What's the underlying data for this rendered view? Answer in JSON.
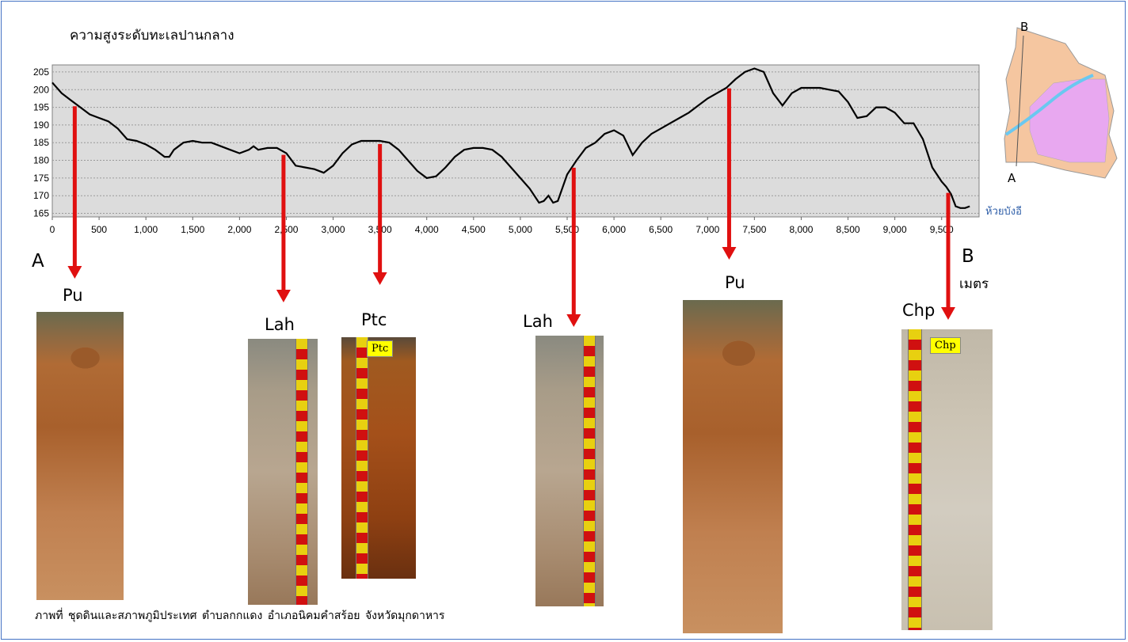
{
  "chart_data": {
    "type": "line",
    "ylabel": "ความสูงระดับทะเลปานกลาง",
    "xlabel": "เมตร",
    "xlim": [
      0,
      9900
    ],
    "ylim": [
      164,
      207
    ],
    "x_ticks": [
      0,
      500,
      1000,
      1500,
      2000,
      2500,
      3000,
      3500,
      4000,
      4500,
      5000,
      5500,
      6000,
      6500,
      7000,
      7500,
      8000,
      8500,
      9000,
      9500
    ],
    "x_tick_labels": [
      "0",
      "500",
      "1,000",
      "1,500",
      "2,000",
      "2,500",
      "3,000",
      "3,500",
      "4,000",
      "4,500",
      "5,000",
      "5,500",
      "6,000",
      "6,500",
      "7,000",
      "7,500",
      "8,000",
      "8,500",
      "9,000",
      "9,500"
    ],
    "y_ticks": [
      165,
      170,
      175,
      180,
      185,
      190,
      195,
      200,
      205
    ],
    "y_tick_labels": [
      "165",
      "170",
      "175",
      "180",
      "185",
      "190",
      "195",
      "200",
      "205"
    ],
    "grid": true,
    "line_color": "#000000",
    "plot_background": "#dcdcdc",
    "series": [
      {
        "x": [
          0,
          100,
          200,
          300,
          400,
          500,
          600,
          700,
          800,
          900,
          1000,
          1100,
          1200,
          1250,
          1300,
          1400,
          1500,
          1600,
          1700,
          1800,
          1900,
          2000,
          2100,
          2150,
          2200,
          2300,
          2400,
          2500,
          2600,
          2700,
          2800,
          2900,
          3000,
          3100,
          3200,
          3300,
          3400,
          3500,
          3600,
          3700,
          3800,
          3900,
          4000,
          4100,
          4200,
          4300,
          4400,
          4500,
          4600,
          4700,
          4800,
          4900,
          5000,
          5100,
          5200,
          5250,
          5300,
          5350,
          5400,
          5500,
          5600,
          5700,
          5800,
          5900,
          6000,
          6100,
          6200,
          6300,
          6400,
          6500,
          6600,
          6700,
          6800,
          6900,
          7000,
          7100,
          7200,
          7300,
          7400,
          7500,
          7600,
          7700,
          7800,
          7900,
          8000,
          8100,
          8200,
          8300,
          8400,
          8500,
          8600,
          8700,
          8800,
          8900,
          9000,
          9100,
          9200,
          9300,
          9400,
          9500,
          9550,
          9600,
          9650,
          9700,
          9750,
          9800
        ],
        "y": [
          202,
          199,
          197,
          195,
          193,
          192,
          191,
          189,
          186,
          185.5,
          184.5,
          183,
          181,
          181,
          183,
          185,
          185.5,
          185,
          185,
          184,
          183,
          182,
          183,
          184,
          183,
          183.5,
          183.5,
          182,
          178.5,
          178,
          177.5,
          176.5,
          178.5,
          182,
          184.5,
          185.5,
          185.5,
          185.5,
          185,
          183,
          180,
          177,
          175,
          175.5,
          178,
          181,
          183,
          183.5,
          183.5,
          183,
          181,
          178,
          175,
          172,
          168,
          168.5,
          170,
          168,
          168.5,
          176,
          180,
          183.5,
          185,
          187.5,
          188.5,
          187,
          181.5,
          185,
          187.5,
          189,
          190.5,
          192,
          193.5,
          195.5,
          197.5,
          199,
          200.5,
          203,
          205,
          206,
          205,
          199,
          195.5,
          199,
          200.5,
          200.5,
          200.5,
          200,
          199.5,
          196.5,
          192,
          192.5,
          195,
          195,
          193.5,
          190.5,
          190.5,
          186,
          178,
          174,
          172.5,
          170.5,
          167,
          166.5,
          166.5,
          167
        ]
      }
    ],
    "pointers": [
      {
        "label": "Pu",
        "x": 240
      },
      {
        "label": "Lah",
        "x": 2470
      },
      {
        "label": "Ptc",
        "x": 3500
      },
      {
        "label": "Lah",
        "x": 5570
      },
      {
        "label": "Pu",
        "x": 7230
      },
      {
        "label": "Chp",
        "x": 9570
      }
    ]
  },
  "labels": {
    "section_start": "A",
    "section_end": "B",
    "end_place": "ห้วยบังอี",
    "caption": "ภาพที่     ชุดดินและสภาพภูมิประเทศ  ตำบลกกแดง  อำเภอนิคมคำสร้อย  จังหวัดมุกดาหาร"
  },
  "inset_map": {
    "label_a": "A",
    "label_b": "B",
    "colors": [
      "#f5c6a0",
      "#e8a8f0",
      "#6ac8f0"
    ]
  },
  "photo_tags": {
    "ptc": "Ptc",
    "chp": "Chp"
  },
  "arrow_color": "#e01010"
}
